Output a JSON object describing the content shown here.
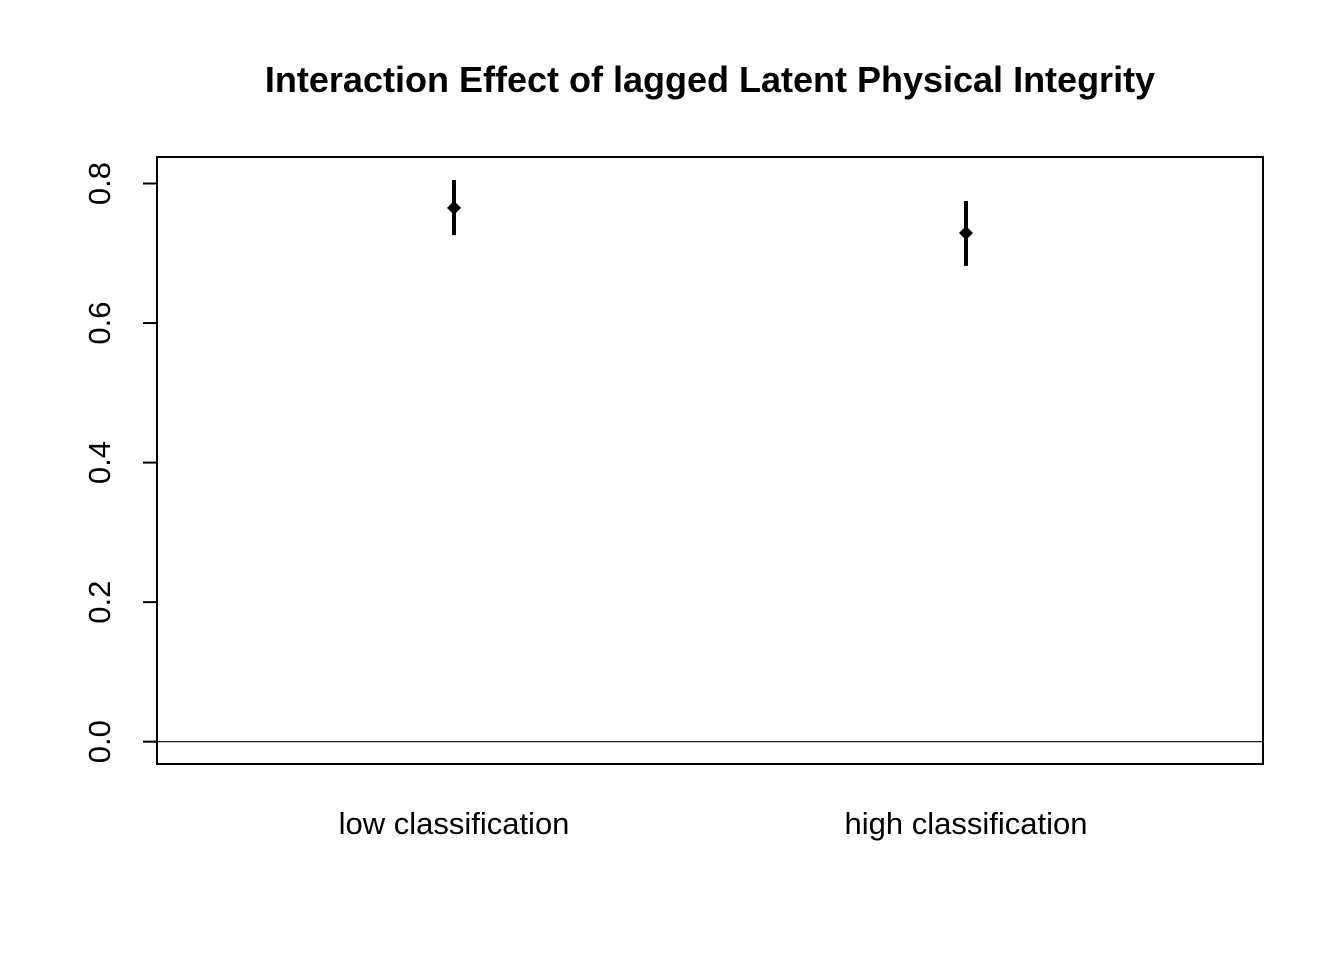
{
  "chart_data": {
    "type": "scatter",
    "title": "Interaction Effect of lagged Latent Physical Integrity",
    "xlabel": "",
    "ylabel": "",
    "categories": [
      "low classification",
      "high classification"
    ],
    "series": [
      {
        "values": [
          0.765,
          0.729
        ],
        "lower": [
          0.726,
          0.682
        ],
        "upper": [
          0.805,
          0.775
        ]
      }
    ],
    "ylim": [
      -0.032,
      0.838
    ],
    "yticks": [
      0.0,
      0.2,
      0.4,
      0.6,
      0.8
    ],
    "ytick_labels": [
      "0.0",
      "0.2",
      "0.4",
      "0.6",
      "0.8"
    ],
    "reference_line": 0.0,
    "marker": "diamond",
    "color": "#000000",
    "grid": false,
    "legend": "none"
  }
}
